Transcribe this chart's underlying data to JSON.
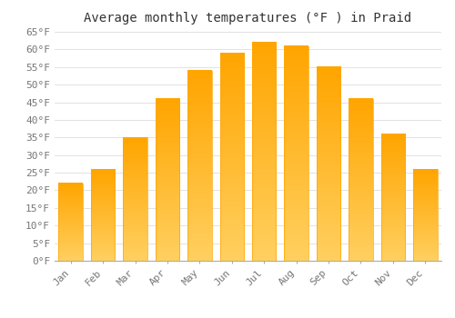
{
  "title": "Average monthly temperatures (°F ) in Praid",
  "months": [
    "Jan",
    "Feb",
    "Mar",
    "Apr",
    "May",
    "Jun",
    "Jul",
    "Aug",
    "Sep",
    "Oct",
    "Nov",
    "Dec"
  ],
  "values": [
    22,
    26,
    35,
    46,
    54,
    59,
    62,
    61,
    55,
    46,
    36,
    26
  ],
  "bar_color_top": "#FFA500",
  "bar_color_bottom": "#FFD060",
  "bar_edge_color": "#FFA500",
  "background_color": "#FFFFFF",
  "grid_color": "#DDDDDD",
  "text_color": "#777777",
  "ylim": [
    0,
    65
  ],
  "yticks": [
    0,
    5,
    10,
    15,
    20,
    25,
    30,
    35,
    40,
    45,
    50,
    55,
    60,
    65
  ],
  "title_fontsize": 10,
  "tick_fontsize": 8,
  "bar_width": 0.75
}
